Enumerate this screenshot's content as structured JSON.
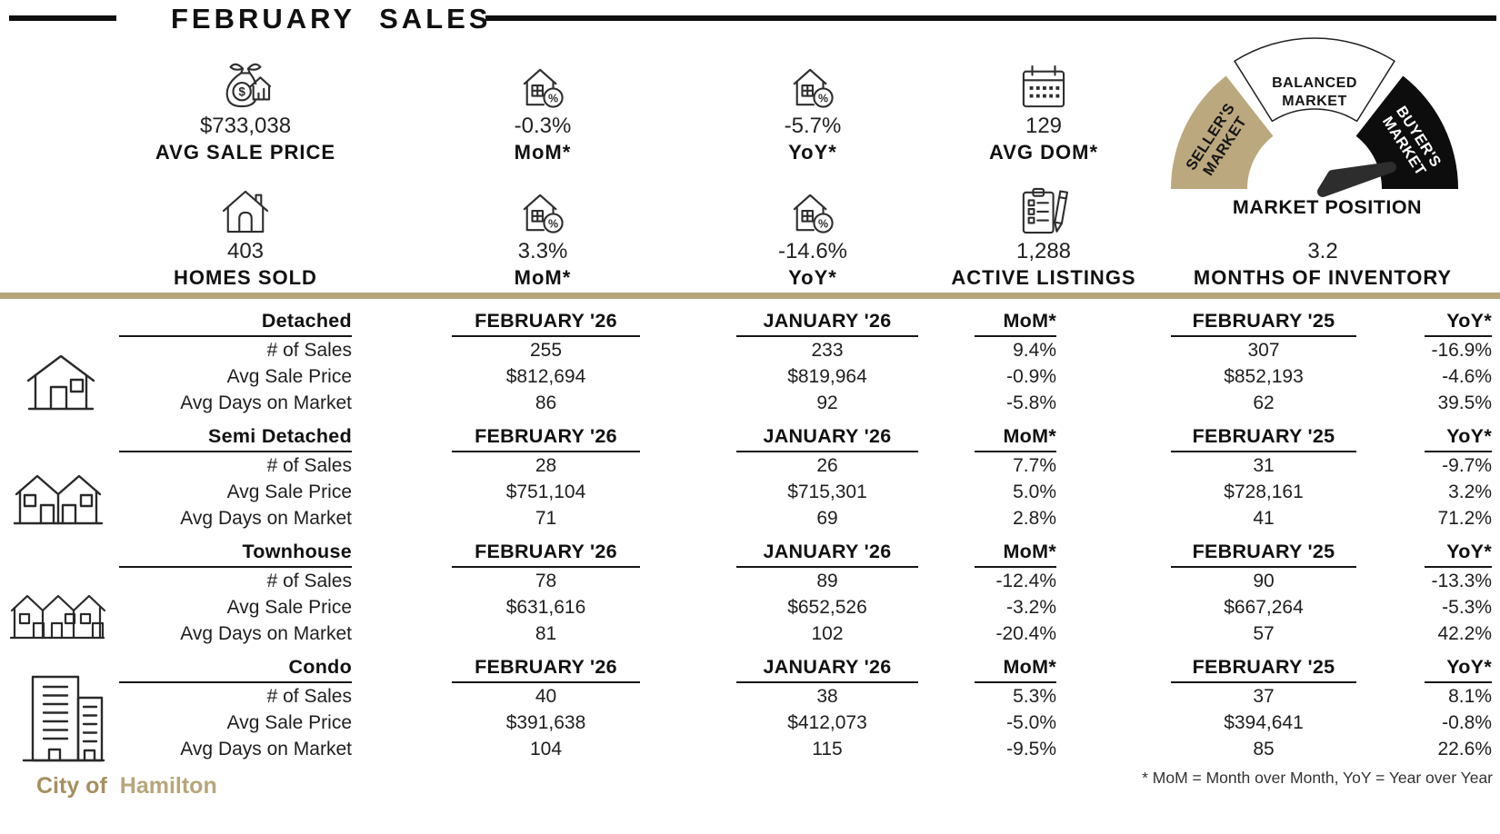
{
  "title": "FEBRUARY SALES",
  "stats": {
    "row1": [
      {
        "icon": "money-bag-house-icon",
        "value": "$733,038",
        "label": "AVG SALE PRICE"
      },
      {
        "icon": "house-percent-icon",
        "value": "-0.3%",
        "label": "MoM*"
      },
      {
        "icon": "house-percent-icon",
        "value": "-5.7%",
        "label": "YoY*"
      },
      {
        "icon": "calendar-icon",
        "value": "129",
        "label": "AVG DOM*"
      }
    ],
    "row2": [
      {
        "icon": "house-icon",
        "value": "403",
        "label": "HOMES SOLD"
      },
      {
        "icon": "house-percent-icon",
        "value": "3.3%",
        "label": "MoM*"
      },
      {
        "icon": "house-percent-icon",
        "value": "-14.6%",
        "label": "YoY*"
      },
      {
        "icon": "clipboard-pencil-icon",
        "value": "1,288",
        "label": "ACTIVE LISTINGS"
      },
      {
        "icon": "none",
        "value": "3.2",
        "label": "MONTHS OF INVENTORY"
      }
    ]
  },
  "gauge": {
    "segments": [
      {
        "line1": "SELLER'S",
        "line2": "MARKET"
      },
      {
        "line1": "BALANCED",
        "line2": "MARKET"
      },
      {
        "line1": "BUYER'S",
        "line2": "MARKET"
      }
    ],
    "label": "MARKET POSITION",
    "colors": {
      "sellers": "#bca87e",
      "balanced": "#ffffff",
      "buyers": "#0d0d0d"
    }
  },
  "table": {
    "row_labels": [
      "# of Sales",
      "Avg Sale Price",
      "Avg Days on Market"
    ],
    "columns": [
      "FEBRUARY '26",
      "JANUARY '26",
      "MoM*",
      "FEBRUARY '25",
      "YoY*"
    ],
    "sections": [
      {
        "name": "Detached",
        "icon": "detached-house-icon",
        "rows": [
          [
            "255",
            "233",
            "9.4%",
            "307",
            "-16.9%"
          ],
          [
            "$812,694",
            "$819,964",
            "-0.9%",
            "$852,193",
            "-4.6%"
          ],
          [
            "86",
            "92",
            "-5.8%",
            "62",
            "39.5%"
          ]
        ]
      },
      {
        "name": "Semi Detached",
        "icon": "semi-detached-house-icon",
        "rows": [
          [
            "28",
            "26",
            "7.7%",
            "31",
            "-9.7%"
          ],
          [
            "$751,104",
            "$715,301",
            "5.0%",
            "$728,161",
            "3.2%"
          ],
          [
            "71",
            "69",
            "2.8%",
            "41",
            "71.2%"
          ]
        ]
      },
      {
        "name": "Townhouse",
        "icon": "townhouse-icon",
        "rows": [
          [
            "78",
            "89",
            "-12.4%",
            "90",
            "-13.3%"
          ],
          [
            "$631,616",
            "$652,526",
            "-3.2%",
            "$667,264",
            "-5.3%"
          ],
          [
            "81",
            "102",
            "-20.4%",
            "57",
            "42.2%"
          ]
        ]
      },
      {
        "name": "Condo",
        "icon": "condo-buildings-icon",
        "rows": [
          [
            "40",
            "38",
            "5.3%",
            "37",
            "8.1%"
          ],
          [
            "$391,638",
            "$412,073",
            "-5.0%",
            "$394,641",
            "-0.8%"
          ],
          [
            "104",
            "115",
            "-9.5%",
            "85",
            "22.6%"
          ]
        ]
      }
    ]
  },
  "footer": {
    "brand_prefix": "City of",
    "brand_city": "Hamilton",
    "footnote": "* MoM = Month over Month, YoY = Year over Year"
  },
  "colors": {
    "tan": "#bca87e",
    "divider": "#b5a67c",
    "ink": "#111111"
  },
  "chart_data": {
    "type": "table",
    "title": "February Sales — City of Hamilton",
    "summary_stats": {
      "avg_sale_price": 733038,
      "avg_sale_price_mom_pct": -0.3,
      "avg_sale_price_yoy_pct": -5.7,
      "avg_days_on_market": 129,
      "homes_sold": 403,
      "homes_sold_mom_pct": 3.3,
      "homes_sold_yoy_pct": -14.6,
      "active_listings": 1288,
      "months_of_inventory": 3.2,
      "market_position": "buyer's market"
    },
    "columns": [
      "FEBRUARY '26",
      "JANUARY '26",
      "MoM %",
      "FEBRUARY '25",
      "YoY %"
    ],
    "metrics": [
      "# of Sales",
      "Avg Sale Price",
      "Avg Days on Market"
    ],
    "property_types": [
      {
        "name": "Detached",
        "num_sales": [
          255,
          233,
          9.4,
          307,
          -16.9
        ],
        "avg_sale_price": [
          812694,
          819964,
          -0.9,
          852193,
          -4.6
        ],
        "avg_days_on_market": [
          86,
          92,
          -5.8,
          62,
          39.5
        ]
      },
      {
        "name": "Semi Detached",
        "num_sales": [
          28,
          26,
          7.7,
          31,
          -9.7
        ],
        "avg_sale_price": [
          751104,
          715301,
          5.0,
          728161,
          3.2
        ],
        "avg_days_on_market": [
          71,
          69,
          2.8,
          41,
          71.2
        ]
      },
      {
        "name": "Townhouse",
        "num_sales": [
          78,
          89,
          -12.4,
          90,
          -13.3
        ],
        "avg_sale_price": [
          631616,
          652526,
          -3.2,
          667264,
          -5.3
        ],
        "avg_days_on_market": [
          81,
          102,
          -20.4,
          57,
          42.2
        ]
      },
      {
        "name": "Condo",
        "num_sales": [
          40,
          38,
          5.3,
          37,
          8.1
        ],
        "avg_sale_price": [
          391638,
          412073,
          -5.0,
          394641,
          -0.8
        ],
        "avg_days_on_market": [
          104,
          115,
          -9.5,
          85,
          22.6
        ]
      }
    ]
  }
}
